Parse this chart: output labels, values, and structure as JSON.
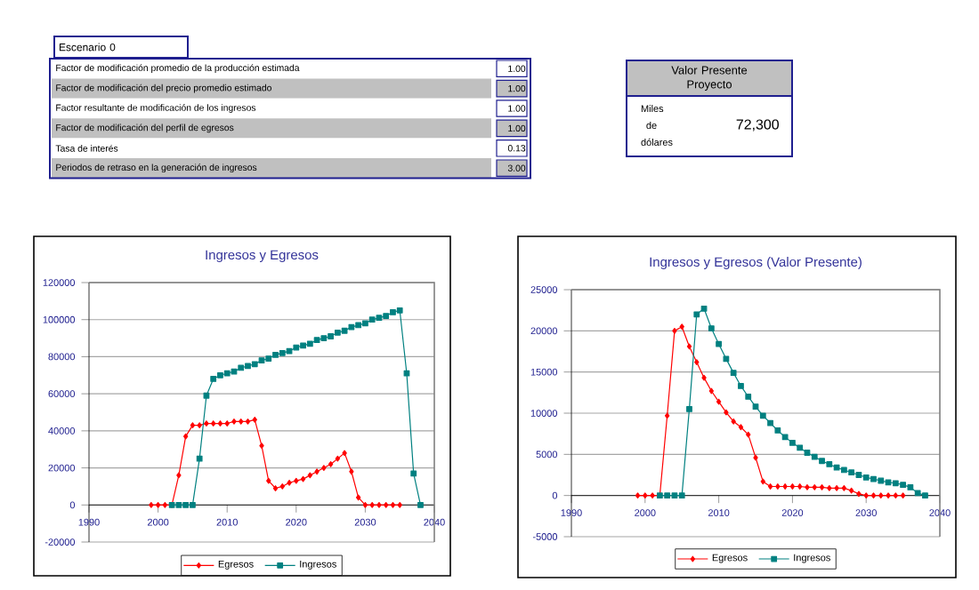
{
  "chart_data": [
    {
      "type": "other",
      "title": "Escenario 0",
      "annotations": [
        "Factor de modificación promedio de la producción estimada",
        "1.00",
        "Factor de modificación del precio promedio estimado",
        "1.00",
        "Factor resultante de modificación de los ingresos",
        "1.00",
        "Factor de modificación del perfil de egresos",
        "1.00",
        "Tasa de interés",
        "0.13",
        "Periodos de retraso en la generación de ingresos",
        "3.00"
      ]
    },
    {
      "type": "other",
      "title": "Valor Presente Proyecto",
      "annotations": [
        "Miles de dólares",
        "72,300"
      ]
    },
    {
      "type": "line",
      "title": "Ingresos y Egresos",
      "xlim": [
        1990,
        2040
      ],
      "ylim": [
        -20000,
        120000
      ],
      "xticks": [
        1990,
        2000,
        2010,
        2020,
        2030,
        2040
      ],
      "yticks": [
        -20000,
        0,
        20000,
        40000,
        60000,
        80000,
        100000,
        120000
      ],
      "grid": "y",
      "legend": "bottom",
      "series": [
        {
          "name": "Egresos",
          "color": "#ff0000",
          "marker": "diamond",
          "x": [
            1999,
            2000,
            2001,
            2002,
            2003,
            2004,
            2005,
            2006,
            2007,
            2008,
            2009,
            2010,
            2011,
            2012,
            2013,
            2014,
            2015,
            2016,
            2017,
            2018,
            2019,
            2020,
            2021,
            2022,
            2023,
            2024,
            2025,
            2026,
            2027,
            2028,
            2029,
            2030,
            2031,
            2032,
            2033,
            2034,
            2035
          ],
          "values": [
            0,
            0,
            0,
            0,
            16000,
            37000,
            43000,
            43000,
            44000,
            44000,
            44000,
            44000,
            45000,
            45000,
            45000,
            46000,
            32000,
            13000,
            9000,
            10000,
            12000,
            13000,
            14000,
            16000,
            18000,
            20000,
            22000,
            25000,
            28000,
            18000,
            4000,
            0,
            0,
            0,
            0,
            0,
            0
          ]
        },
        {
          "name": "Ingresos",
          "color": "#008080",
          "marker": "square",
          "x": [
            2002,
            2003,
            2004,
            2005,
            2006,
            2007,
            2008,
            2009,
            2010,
            2011,
            2012,
            2013,
            2014,
            2015,
            2016,
            2017,
            2018,
            2019,
            2020,
            2021,
            2022,
            2023,
            2024,
            2025,
            2026,
            2027,
            2028,
            2029,
            2030,
            2031,
            2032,
            2033,
            2034,
            2035,
            2036,
            2037,
            2038
          ],
          "values": [
            0,
            0,
            0,
            0,
            25000,
            59000,
            68000,
            70000,
            71000,
            72000,
            74000,
            75000,
            76000,
            78000,
            79000,
            81000,
            82000,
            83000,
            85000,
            86000,
            87000,
            89000,
            90000,
            91000,
            93000,
            94000,
            96000,
            97000,
            98000,
            100000,
            101000,
            102000,
            104000,
            105000,
            71000,
            17000,
            0
          ]
        }
      ]
    },
    {
      "type": "line",
      "title": "Ingresos y Egresos (Valor Presente)",
      "xlim": [
        1990,
        2040
      ],
      "ylim": [
        -5000,
        25000
      ],
      "xticks": [
        1990,
        2000,
        2010,
        2020,
        2030,
        2040
      ],
      "yticks": [
        -5000,
        0,
        5000,
        10000,
        15000,
        20000,
        25000
      ],
      "grid": "y",
      "legend": "bottom",
      "series": [
        {
          "name": "Egresos",
          "color": "#ff0000",
          "marker": "diamond",
          "x": [
            1999,
            2000,
            2001,
            2002,
            2003,
            2004,
            2005,
            2006,
            2007,
            2008,
            2009,
            2010,
            2011,
            2012,
            2013,
            2014,
            2015,
            2016,
            2017,
            2018,
            2019,
            2020,
            2021,
            2022,
            2023,
            2024,
            2025,
            2026,
            2027,
            2028,
            2029,
            2030,
            2031,
            2032,
            2033,
            2034,
            2035
          ],
          "values": [
            0,
            0,
            0,
            0,
            9700,
            20000,
            20500,
            18100,
            16200,
            14300,
            12700,
            11400,
            10100,
            9000,
            8300,
            7400,
            4600,
            1700,
            1100,
            1100,
            1100,
            1100,
            1100,
            1000,
            1000,
            1000,
            900,
            900,
            900,
            600,
            200,
            0,
            0,
            0,
            0,
            0,
            0
          ]
        },
        {
          "name": "Ingresos",
          "color": "#008080",
          "marker": "square",
          "x": [
            2002,
            2003,
            2004,
            2005,
            2006,
            2007,
            2008,
            2009,
            2010,
            2011,
            2012,
            2013,
            2014,
            2015,
            2016,
            2017,
            2018,
            2019,
            2020,
            2021,
            2022,
            2023,
            2024,
            2025,
            2026,
            2027,
            2028,
            2029,
            2030,
            2031,
            2032,
            2033,
            2034,
            2035,
            2036,
            2037,
            2038
          ],
          "values": [
            0,
            0,
            0,
            0,
            10500,
            22000,
            22700,
            20300,
            18400,
            16600,
            14900,
            13300,
            12000,
            10800,
            9700,
            8800,
            7900,
            7100,
            6400,
            5800,
            5200,
            4700,
            4200,
            3800,
            3400,
            3100,
            2800,
            2500,
            2200,
            2000,
            1800,
            1600,
            1500,
            1300,
            1000,
            300,
            0
          ]
        }
      ]
    }
  ]
}
